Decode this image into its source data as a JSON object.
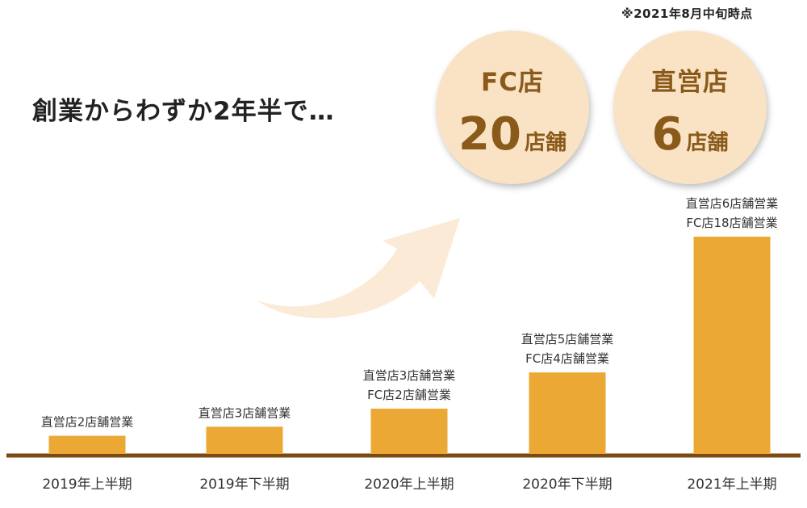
{
  "note": "※2021年8月中旬時点",
  "headline": "創業からわずか2年半で…",
  "circles": [
    {
      "title": "FC店",
      "number": "20",
      "unit": "店舗"
    },
    {
      "title": "直営店",
      "number": "6",
      "unit": "店舗"
    }
  ],
  "colors": {
    "bar": "#eca834",
    "axis": "#7a4a12",
    "circle": "#f9e3c4",
    "circle_text": "#8a5a1b",
    "arrow": "#fbebd6"
  },
  "chart_data": {
    "type": "bar",
    "categories": [
      "2019年上半期",
      "2019年下半期",
      "2020年上半期",
      "2020年下半期",
      "2021年上半期"
    ],
    "series": [
      {
        "values": [
          2,
          3,
          5,
          9,
          24
        ]
      }
    ],
    "labels": [
      [
        "直営店2店舗営業"
      ],
      [
        "直営店3店舗営業"
      ],
      [
        "直営店3店舗営業",
        "FC店2店舗営業"
      ],
      [
        "直営店5店舗営業",
        "FC店4店舗営業"
      ],
      [
        "直営店6店舗営業",
        "FC店18店舗営業"
      ]
    ],
    "ylim": [
      0,
      24
    ],
    "grid": false,
    "legend": "none"
  }
}
